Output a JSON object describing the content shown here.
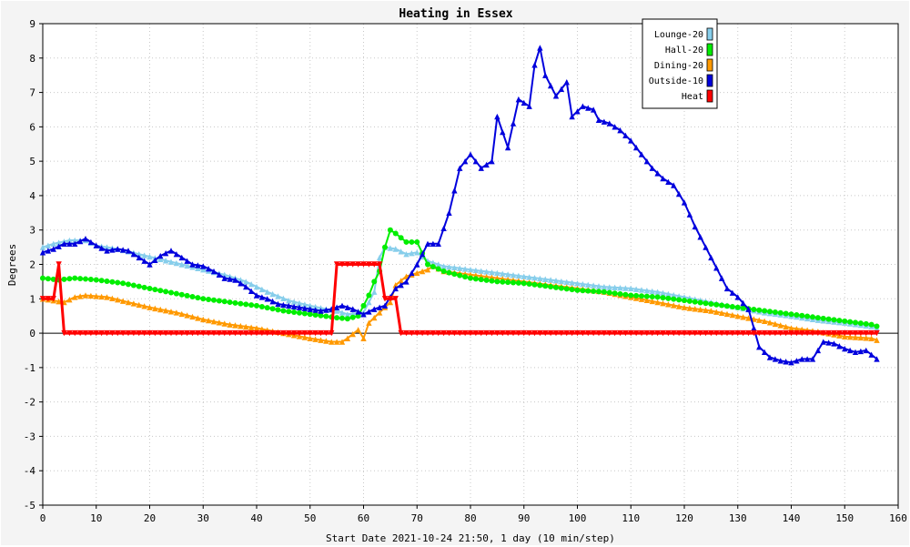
{
  "chart_data": {
    "type": "line",
    "title": "Heating in Essex",
    "xlabel": "Start Date 2021-10-24 21:50, 1 day (10 min/step)",
    "ylabel": "Degrees",
    "xlim": [
      0,
      160
    ],
    "ylim": [
      -5,
      9
    ],
    "x_ticks": [
      0,
      10,
      20,
      30,
      40,
      50,
      60,
      70,
      80,
      90,
      100,
      110,
      120,
      130,
      140,
      150,
      160
    ],
    "y_ticks": [
      -5,
      -4,
      -3,
      -2,
      -1,
      0,
      1,
      2,
      3,
      4,
      5,
      6,
      7,
      8,
      9
    ],
    "grid": true,
    "legend_position": "top-right",
    "series": [
      {
        "name": "Lounge-20",
        "color": "#87ceeb",
        "marker": "triangle",
        "points": [
          [
            0,
            2.5
          ],
          [
            2,
            2.6
          ],
          [
            5,
            2.7
          ],
          [
            8,
            2.7
          ],
          [
            10,
            2.55
          ],
          [
            14,
            2.45
          ],
          [
            18,
            2.3
          ],
          [
            22,
            2.15
          ],
          [
            26,
            2.0
          ],
          [
            30,
            1.85
          ],
          [
            34,
            1.7
          ],
          [
            38,
            1.5
          ],
          [
            42,
            1.2
          ],
          [
            46,
            0.95
          ],
          [
            50,
            0.8
          ],
          [
            53,
            0.7
          ],
          [
            55,
            0.65
          ],
          [
            57,
            0.55
          ],
          [
            60,
            0.6
          ],
          [
            62,
            1.2
          ],
          [
            63,
            2.2
          ],
          [
            64,
            2.5
          ],
          [
            66,
            2.45
          ],
          [
            68,
            2.3
          ],
          [
            70,
            2.35
          ],
          [
            72,
            2.1
          ],
          [
            75,
            1.95
          ],
          [
            80,
            1.85
          ],
          [
            85,
            1.75
          ],
          [
            90,
            1.65
          ],
          [
            95,
            1.55
          ],
          [
            100,
            1.45
          ],
          [
            105,
            1.35
          ],
          [
            110,
            1.3
          ],
          [
            115,
            1.2
          ],
          [
            120,
            1.05
          ],
          [
            125,
            0.9
          ],
          [
            130,
            0.75
          ],
          [
            135,
            0.6
          ],
          [
            140,
            0.5
          ],
          [
            145,
            0.38
          ],
          [
            150,
            0.3
          ],
          [
            155,
            0.2
          ],
          [
            156,
            0.15
          ]
        ]
      },
      {
        "name": "Hall-20",
        "color": "#00ee00",
        "marker": "circle",
        "points": [
          [
            0,
            1.6
          ],
          [
            3,
            1.55
          ],
          [
            6,
            1.6
          ],
          [
            10,
            1.55
          ],
          [
            15,
            1.45
          ],
          [
            20,
            1.3
          ],
          [
            25,
            1.15
          ],
          [
            30,
            1.0
          ],
          [
            35,
            0.9
          ],
          [
            40,
            0.8
          ],
          [
            45,
            0.65
          ],
          [
            50,
            0.55
          ],
          [
            55,
            0.45
          ],
          [
            57,
            0.42
          ],
          [
            59,
            0.5
          ],
          [
            60,
            0.8
          ],
          [
            61,
            1.1
          ],
          [
            62,
            1.5
          ],
          [
            63,
            1.8
          ],
          [
            64,
            2.5
          ],
          [
            65,
            3.0
          ],
          [
            66,
            2.9
          ],
          [
            68,
            2.65
          ],
          [
            70,
            2.65
          ],
          [
            72,
            2.0
          ],
          [
            75,
            1.8
          ],
          [
            80,
            1.6
          ],
          [
            85,
            1.5
          ],
          [
            90,
            1.45
          ],
          [
            95,
            1.35
          ],
          [
            100,
            1.25
          ],
          [
            105,
            1.2
          ],
          [
            110,
            1.1
          ],
          [
            115,
            1.05
          ],
          [
            120,
            0.95
          ],
          [
            125,
            0.85
          ],
          [
            130,
            0.75
          ],
          [
            135,
            0.65
          ],
          [
            140,
            0.55
          ],
          [
            145,
            0.45
          ],
          [
            150,
            0.35
          ],
          [
            155,
            0.25
          ],
          [
            156,
            0.2
          ]
        ]
      },
      {
        "name": "Dining-20",
        "color": "#ff9900",
        "marker": "triangle",
        "points": [
          [
            0,
            1.0
          ],
          [
            2,
            0.95
          ],
          [
            4,
            0.9
          ],
          [
            6,
            1.05
          ],
          [
            8,
            1.1
          ],
          [
            12,
            1.05
          ],
          [
            16,
            0.9
          ],
          [
            20,
            0.75
          ],
          [
            25,
            0.6
          ],
          [
            30,
            0.4
          ],
          [
            35,
            0.25
          ],
          [
            40,
            0.15
          ],
          [
            45,
            0.0
          ],
          [
            50,
            -0.15
          ],
          [
            54,
            -0.25
          ],
          [
            56,
            -0.25
          ],
          [
            57,
            -0.15
          ],
          [
            59,
            0.1
          ],
          [
            60,
            -0.15
          ],
          [
            61,
            0.3
          ],
          [
            63,
            0.6
          ],
          [
            65,
            0.9
          ],
          [
            66,
            1.4
          ],
          [
            68,
            1.65
          ],
          [
            70,
            1.75
          ],
          [
            72,
            1.85
          ],
          [
            73,
            1.95
          ],
          [
            75,
            1.8
          ],
          [
            80,
            1.7
          ],
          [
            85,
            1.6
          ],
          [
            90,
            1.5
          ],
          [
            95,
            1.4
          ],
          [
            100,
            1.3
          ],
          [
            105,
            1.2
          ],
          [
            110,
            1.05
          ],
          [
            115,
            0.9
          ],
          [
            120,
            0.75
          ],
          [
            125,
            0.65
          ],
          [
            130,
            0.5
          ],
          [
            135,
            0.35
          ],
          [
            140,
            0.15
          ],
          [
            145,
            0.05
          ],
          [
            150,
            -0.1
          ],
          [
            155,
            -0.15
          ],
          [
            156,
            -0.2
          ]
        ]
      },
      {
        "name": "Outside-10",
        "color": "#0000dd",
        "marker": "triangle",
        "points": [
          [
            0,
            2.35
          ],
          [
            2,
            2.45
          ],
          [
            4,
            2.6
          ],
          [
            6,
            2.6
          ],
          [
            8,
            2.75
          ],
          [
            10,
            2.55
          ],
          [
            12,
            2.4
          ],
          [
            14,
            2.45
          ],
          [
            16,
            2.4
          ],
          [
            18,
            2.2
          ],
          [
            20,
            2.0
          ],
          [
            22,
            2.25
          ],
          [
            24,
            2.4
          ],
          [
            26,
            2.2
          ],
          [
            28,
            2.0
          ],
          [
            30,
            1.95
          ],
          [
            32,
            1.8
          ],
          [
            34,
            1.6
          ],
          [
            36,
            1.55
          ],
          [
            38,
            1.35
          ],
          [
            40,
            1.1
          ],
          [
            42,
            1.0
          ],
          [
            44,
            0.85
          ],
          [
            46,
            0.8
          ],
          [
            48,
            0.75
          ],
          [
            50,
            0.7
          ],
          [
            52,
            0.65
          ],
          [
            54,
            0.7
          ],
          [
            56,
            0.8
          ],
          [
            58,
            0.7
          ],
          [
            60,
            0.55
          ],
          [
            62,
            0.7
          ],
          [
            64,
            0.8
          ],
          [
            66,
            1.3
          ],
          [
            68,
            1.5
          ],
          [
            70,
            2.0
          ],
          [
            72,
            2.6
          ],
          [
            74,
            2.6
          ],
          [
            76,
            3.5
          ],
          [
            78,
            4.8
          ],
          [
            80,
            5.2
          ],
          [
            82,
            4.8
          ],
          [
            84,
            5.0
          ],
          [
            85,
            6.3
          ],
          [
            87,
            5.4
          ],
          [
            89,
            6.8
          ],
          [
            91,
            6.6
          ],
          [
            92,
            7.8
          ],
          [
            93,
            8.3
          ],
          [
            94,
            7.5
          ],
          [
            96,
            6.9
          ],
          [
            98,
            7.3
          ],
          [
            99,
            6.3
          ],
          [
            101,
            6.6
          ],
          [
            103,
            6.5
          ],
          [
            104,
            6.2
          ],
          [
            106,
            6.1
          ],
          [
            108,
            5.9
          ],
          [
            110,
            5.6
          ],
          [
            112,
            5.2
          ],
          [
            114,
            4.8
          ],
          [
            116,
            4.5
          ],
          [
            118,
            4.3
          ],
          [
            120,
            3.8
          ],
          [
            122,
            3.1
          ],
          [
            124,
            2.5
          ],
          [
            126,
            1.9
          ],
          [
            128,
            1.3
          ],
          [
            130,
            1.05
          ],
          [
            132,
            0.7
          ],
          [
            134,
            -0.4
          ],
          [
            136,
            -0.7
          ],
          [
            138,
            -0.8
          ],
          [
            140,
            -0.85
          ],
          [
            142,
            -0.75
          ],
          [
            144,
            -0.75
          ],
          [
            146,
            -0.25
          ],
          [
            148,
            -0.3
          ],
          [
            150,
            -0.45
          ],
          [
            152,
            -0.55
          ],
          [
            154,
            -0.5
          ],
          [
            156,
            -0.75
          ]
        ]
      },
      {
        "name": "Heat",
        "color": "#ff0000",
        "marker": "triangle-down",
        "points": [
          [
            0,
            1.0
          ],
          [
            2,
            1.0
          ],
          [
            3,
            2.0
          ],
          [
            4,
            0.0
          ],
          [
            54,
            0.0
          ],
          [
            55,
            2.0
          ],
          [
            60,
            2.0
          ],
          [
            63,
            2.0
          ],
          [
            64,
            1.0
          ],
          [
            66,
            1.0
          ],
          [
            67,
            0.0
          ],
          [
            156,
            0.0
          ]
        ]
      }
    ]
  }
}
